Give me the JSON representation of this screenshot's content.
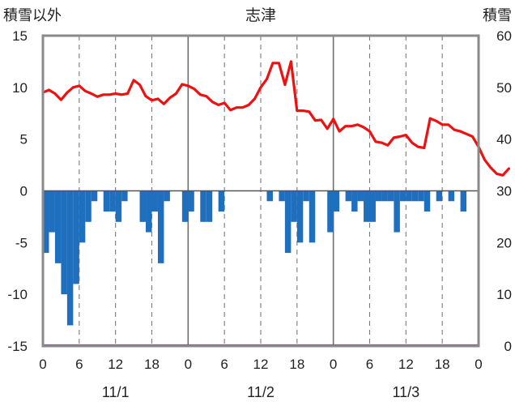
{
  "chart_data": {
    "type": "bar+line",
    "title": "志津",
    "left_axis_label": "積雪以外",
    "right_axis_label": "積雪",
    "left_ylim": [
      -15,
      15
    ],
    "right_ylim": [
      0,
      60
    ],
    "left_yticks": [
      "15",
      "10",
      "5",
      "0",
      "-5",
      "-10",
      "-15"
    ],
    "right_yticks": [
      "60",
      "50",
      "40",
      "30",
      "20",
      "10",
      "0"
    ],
    "x_ticks": [
      "0",
      "6",
      "12",
      "18",
      "0",
      "6",
      "12",
      "18",
      "0",
      "6",
      "12",
      "18",
      "0"
    ],
    "date_labels": [
      "11/1",
      "11/2",
      "11/3"
    ],
    "grid": "vertical dashed every 6h, solid at day boundaries",
    "bar_color": "#1f6fbf",
    "line_color": "#ee1111",
    "bars": [
      {
        "hour": 0,
        "value": -6
      },
      {
        "hour": 1,
        "value": -4
      },
      {
        "hour": 2,
        "value": -7
      },
      {
        "hour": 3,
        "value": -10
      },
      {
        "hour": 4,
        "value": -13
      },
      {
        "hour": 5,
        "value": -9
      },
      {
        "hour": 6,
        "value": -5
      },
      {
        "hour": 7,
        "value": -3
      },
      {
        "hour": 8,
        "value": -1
      },
      {
        "hour": 10,
        "value": -2
      },
      {
        "hour": 11,
        "value": -2
      },
      {
        "hour": 12,
        "value": -3
      },
      {
        "hour": 13,
        "value": -1
      },
      {
        "hour": 16,
        "value": -3
      },
      {
        "hour": 17,
        "value": -4
      },
      {
        "hour": 18,
        "value": -2
      },
      {
        "hour": 19,
        "value": -7
      },
      {
        "hour": 20,
        "value": -1
      },
      {
        "hour": 23,
        "value": -3
      },
      {
        "hour": 24,
        "value": -2
      },
      {
        "hour": 26,
        "value": -3
      },
      {
        "hour": 27,
        "value": -3
      },
      {
        "hour": 29,
        "value": -2
      },
      {
        "hour": 37,
        "value": -1
      },
      {
        "hour": 39,
        "value": -1
      },
      {
        "hour": 40,
        "value": -6
      },
      {
        "hour": 41,
        "value": -3
      },
      {
        "hour": 42,
        "value": -5
      },
      {
        "hour": 43,
        "value": -1
      },
      {
        "hour": 44,
        "value": -5
      },
      {
        "hour": 47,
        "value": -4
      },
      {
        "hour": 48,
        "value": -2
      },
      {
        "hour": 50,
        "value": -1
      },
      {
        "hour": 51,
        "value": -2
      },
      {
        "hour": 52,
        "value": -1
      },
      {
        "hour": 53,
        "value": -3
      },
      {
        "hour": 54,
        "value": -3
      },
      {
        "hour": 55,
        "value": -1
      },
      {
        "hour": 56,
        "value": -1
      },
      {
        "hour": 57,
        "value": -1
      },
      {
        "hour": 58,
        "value": -4
      },
      {
        "hour": 59,
        "value": -1
      },
      {
        "hour": 60,
        "value": -1
      },
      {
        "hour": 61,
        "value": -1
      },
      {
        "hour": 62,
        "value": -1
      },
      {
        "hour": 63,
        "value": -2
      },
      {
        "hour": 65,
        "value": -1
      },
      {
        "hour": 67,
        "value": -1
      },
      {
        "hour": 69,
        "value": -2
      }
    ],
    "line": [
      {
        "hour": 0,
        "value": 49.0
      },
      {
        "hour": 1,
        "value": 49.5
      },
      {
        "hour": 2,
        "value": 48.8
      },
      {
        "hour": 3,
        "value": 47.6
      },
      {
        "hour": 4,
        "value": 49.0
      },
      {
        "hour": 5,
        "value": 50.0
      },
      {
        "hour": 6,
        "value": 50.3
      },
      {
        "hour": 7,
        "value": 49.3
      },
      {
        "hour": 8,
        "value": 48.8
      },
      {
        "hour": 9,
        "value": 48.2
      },
      {
        "hour": 10,
        "value": 48.6
      },
      {
        "hour": 11,
        "value": 48.6
      },
      {
        "hour": 12,
        "value": 48.8
      },
      {
        "hour": 13,
        "value": 48.6
      },
      {
        "hour": 14,
        "value": 48.8
      },
      {
        "hour": 15,
        "value": 51.4
      },
      {
        "hour": 16,
        "value": 50.5
      },
      {
        "hour": 17,
        "value": 48.3
      },
      {
        "hour": 18,
        "value": 47.5
      },
      {
        "hour": 19,
        "value": 47.8
      },
      {
        "hour": 20,
        "value": 46.8
      },
      {
        "hour": 21,
        "value": 48.0
      },
      {
        "hour": 22,
        "value": 48.8
      },
      {
        "hour": 23,
        "value": 50.6
      },
      {
        "hour": 24,
        "value": 50.3
      },
      {
        "hour": 25,
        "value": 49.7
      },
      {
        "hour": 26,
        "value": 48.6
      },
      {
        "hour": 27,
        "value": 48.3
      },
      {
        "hour": 28,
        "value": 47.2
      },
      {
        "hour": 29,
        "value": 46.6
      },
      {
        "hour": 30,
        "value": 47.0
      },
      {
        "hour": 31,
        "value": 45.6
      },
      {
        "hour": 32,
        "value": 46.1
      },
      {
        "hour": 33,
        "value": 46.1
      },
      {
        "hour": 34,
        "value": 46.6
      },
      {
        "hour": 35,
        "value": 47.8
      },
      {
        "hour": 36,
        "value": 50.0
      },
      {
        "hour": 37,
        "value": 51.6
      },
      {
        "hour": 38,
        "value": 54.7
      },
      {
        "hour": 39,
        "value": 54.7
      },
      {
        "hour": 40,
        "value": 50.5
      },
      {
        "hour": 41,
        "value": 55.0
      },
      {
        "hour": 42,
        "value": 45.5
      },
      {
        "hour": 43,
        "value": 45.5
      },
      {
        "hour": 44,
        "value": 45.3
      },
      {
        "hour": 45,
        "value": 43.6
      },
      {
        "hour": 46,
        "value": 43.7
      },
      {
        "hour": 47,
        "value": 42.0
      },
      {
        "hour": 48,
        "value": 43.9
      },
      {
        "hour": 49,
        "value": 41.5
      },
      {
        "hour": 50,
        "value": 42.5
      },
      {
        "hour": 51,
        "value": 42.5
      },
      {
        "hour": 52,
        "value": 42.8
      },
      {
        "hour": 53,
        "value": 42.3
      },
      {
        "hour": 54,
        "value": 41.5
      },
      {
        "hour": 55,
        "value": 39.5
      },
      {
        "hour": 56,
        "value": 39.3
      },
      {
        "hour": 57,
        "value": 38.8
      },
      {
        "hour": 58,
        "value": 40.3
      },
      {
        "hour": 59,
        "value": 40.5
      },
      {
        "hour": 60,
        "value": 40.8
      },
      {
        "hour": 61,
        "value": 39.3
      },
      {
        "hour": 62,
        "value": 38.5
      },
      {
        "hour": 63,
        "value": 38.3
      },
      {
        "hour": 64,
        "value": 44.0
      },
      {
        "hour": 65,
        "value": 43.5
      },
      {
        "hour": 66,
        "value": 42.8
      },
      {
        "hour": 67,
        "value": 42.8
      },
      {
        "hour": 68,
        "value": 41.8
      },
      {
        "hour": 69,
        "value": 41.5
      },
      {
        "hour": 70,
        "value": 41.0
      },
      {
        "hour": 71,
        "value": 40.5
      },
      {
        "hour": 72,
        "value": 38.5
      },
      {
        "hour": 73,
        "value": 36.0
      },
      {
        "hour": 74,
        "value": 34.5
      },
      {
        "hour": 75,
        "value": 33.3
      },
      {
        "hour": 76,
        "value": 33.0
      },
      {
        "hour": 77,
        "value": 34.3
      }
    ],
    "hours_total": 72
  }
}
